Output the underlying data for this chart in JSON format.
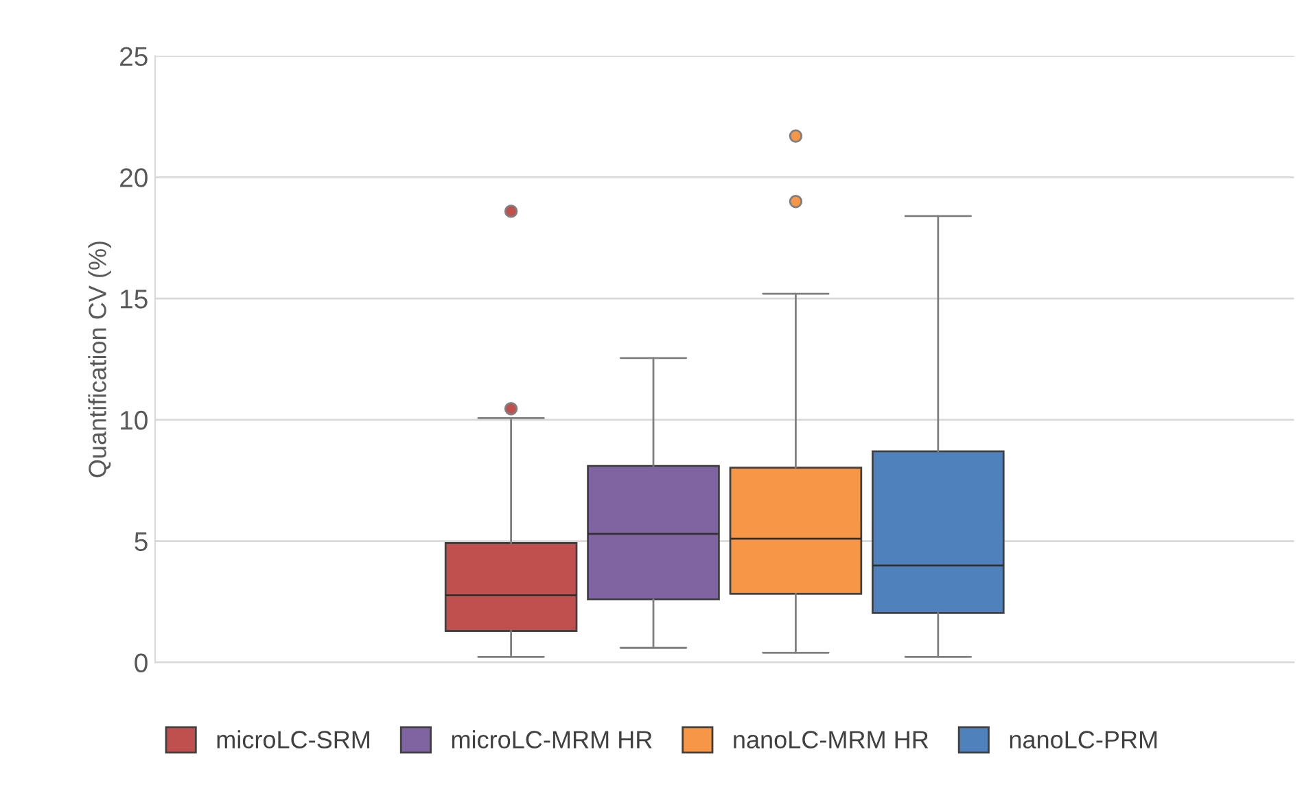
{
  "chart_data": {
    "type": "box",
    "ylabel": "Quantification CV (%)",
    "categories": [
      null
    ],
    "series": [
      {
        "name": "microLC-SRM",
        "color": "#c0504d",
        "boxes": [
          {
            "low": 0.23,
            "q1": 1.3,
            "median": 2.77,
            "q3": 4.92,
            "high": 10.07,
            "outliers": [
              10.46,
              18.6
            ]
          }
        ]
      },
      {
        "name": "microLC-MRM HR",
        "color": "#8064a2",
        "boxes": [
          {
            "low": 0.6,
            "q1": 2.6,
            "median": 5.3,
            "q3": 8.1,
            "high": 12.55
          }
        ]
      },
      {
        "name": "nanoLC-MRM HR",
        "color": "#f79646",
        "boxes": [
          {
            "low": 0.4,
            "q1": 2.83,
            "median": 5.1,
            "q3": 8.03,
            "high": 15.2,
            "outliers": [
              19.0,
              21.7
            ]
          }
        ]
      },
      {
        "name": "nanoLC-PRM",
        "color": "#4f81bd",
        "boxes": [
          {
            "low": 0.23,
            "q1": 2.04,
            "median": 4.0,
            "q3": 8.7,
            "high": 18.4
          }
        ]
      }
    ],
    "ylim": [
      0,
      25
    ],
    "yticks": [
      0,
      5,
      10,
      15,
      20,
      25
    ],
    "grid": "y",
    "legend": "bottom"
  }
}
